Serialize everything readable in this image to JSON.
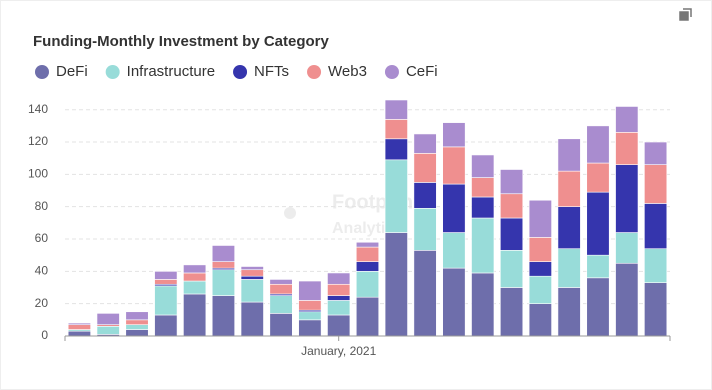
{
  "chart_data": {
    "type": "stacked_bar",
    "title": "Funding-Monthly Investment by Category",
    "watermark": [
      "Footprint",
      "Analytics"
    ],
    "categories": [
      null,
      null,
      null,
      null,
      null,
      null,
      null,
      null,
      null,
      "January, 2021",
      null,
      null,
      null,
      null,
      null,
      null,
      null,
      null,
      null,
      null,
      null
    ],
    "series": [
      {
        "name": "DeFi",
        "color": "#6e6eab",
        "values": [
          3,
          1,
          4,
          13,
          26,
          25,
          21,
          14,
          10,
          13,
          24,
          64,
          53,
          42,
          39,
          30,
          20,
          30,
          36,
          45,
          33
        ]
      },
      {
        "name": "Infrastructure",
        "color": "#98dcd9",
        "values": [
          1,
          5,
          3,
          18,
          8,
          16,
          14,
          11,
          5,
          9,
          16,
          45,
          26,
          22,
          34,
          23,
          17,
          24,
          14,
          19,
          21
        ]
      },
      {
        "name": "NFTs",
        "color": "#3535ad",
        "values": [
          0,
          0,
          0,
          1,
          0,
          1,
          2,
          1,
          1,
          3,
          6,
          13,
          16,
          30,
          13,
          20,
          9,
          26,
          39,
          42,
          28
        ]
      },
      {
        "name": "Web3",
        "color": "#ef8f8f",
        "values": [
          3,
          1,
          3,
          3,
          5,
          4,
          4,
          6,
          6,
          7,
          9,
          12,
          18,
          23,
          12,
          15,
          15,
          22,
          18,
          20,
          24
        ]
      },
      {
        "name": "CeFi",
        "color": "#a98ccf",
        "values": [
          1,
          7,
          5,
          5,
          5,
          10,
          2,
          3,
          12,
          7,
          3,
          12,
          12,
          15,
          14,
          15,
          23,
          20,
          23,
          16,
          14
        ]
      }
    ],
    "ylim": [
      0,
      146
    ],
    "yticks": [
      0,
      20,
      40,
      60,
      80,
      100,
      120,
      140
    ],
    "grid": true
  }
}
